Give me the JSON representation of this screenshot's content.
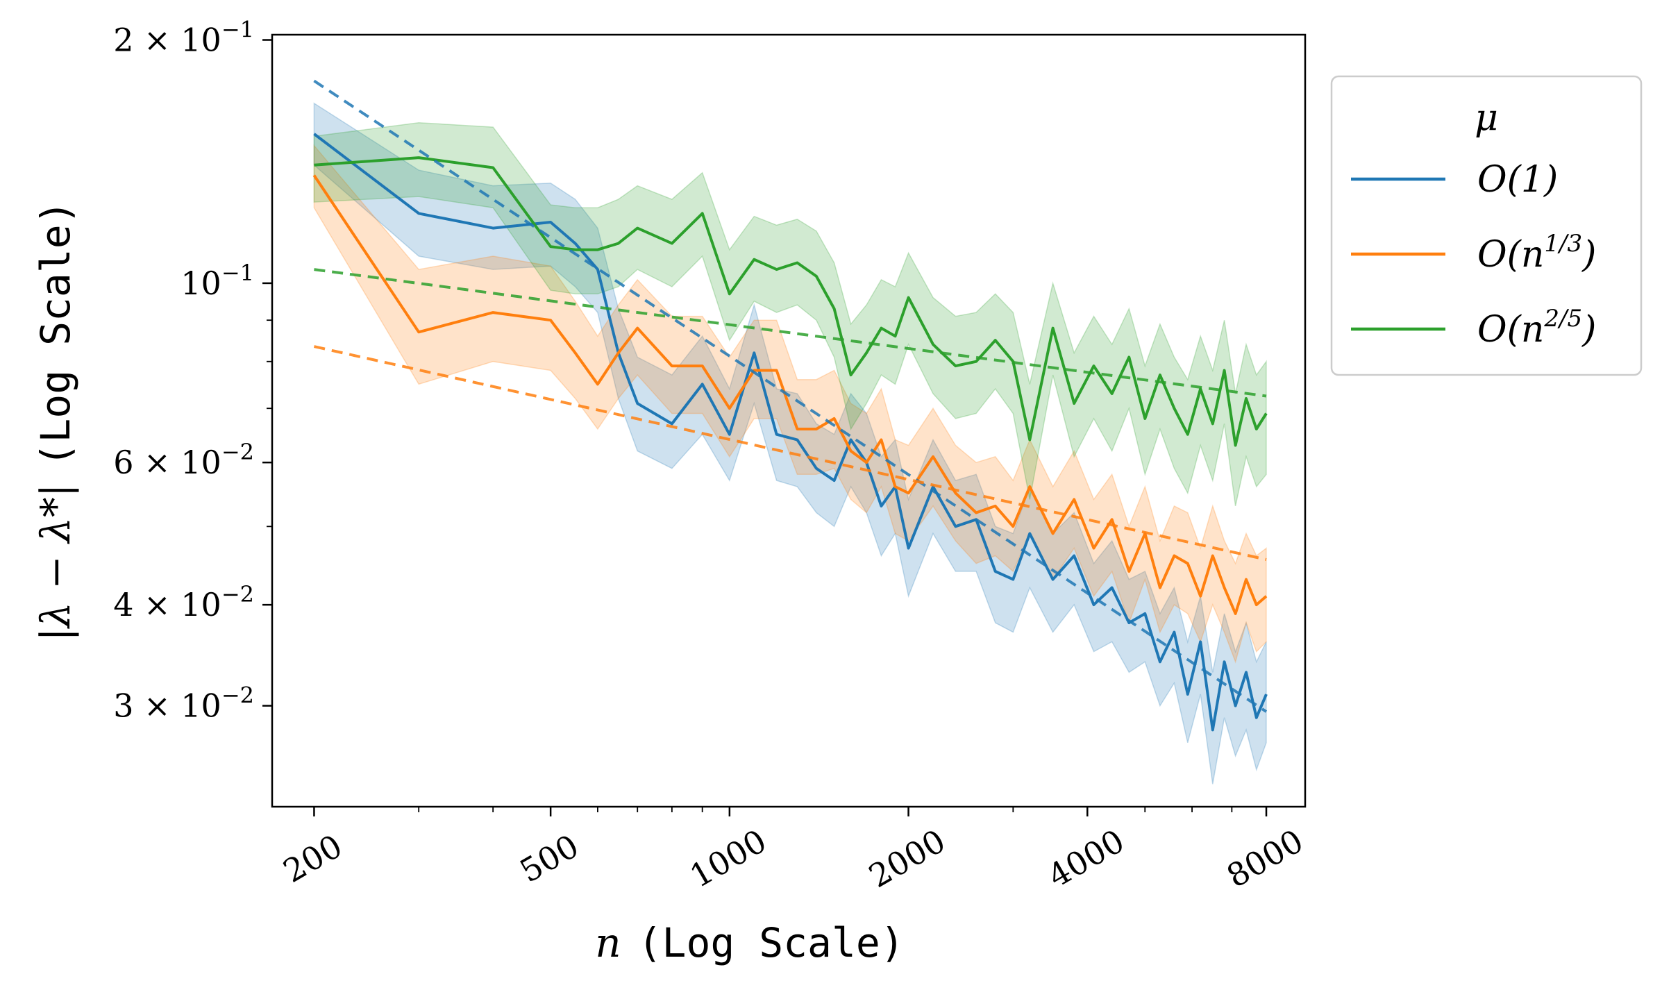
{
  "chart_data": {
    "type": "line",
    "xscale": "log",
    "yscale": "log",
    "xlim": [
      170,
      9300
    ],
    "ylim": [
      0.0225,
      0.203
    ],
    "xlabel": {
      "var": "n",
      "rest": "(Log Scale)"
    },
    "ylabel": {
      "math": "|λ − λ*|",
      "rest": "(Log Scale)"
    },
    "xticks": [
      {
        "value": 200,
        "label": "200"
      },
      {
        "value": 500,
        "label": "500"
      },
      {
        "value": 1000,
        "label": "1000"
      },
      {
        "value": 2000,
        "label": "2000"
      },
      {
        "value": 4000,
        "label": "4000"
      },
      {
        "value": 8000,
        "label": "8000"
      }
    ],
    "yticks": [
      {
        "value": 0.2,
        "mant": "2 × 10",
        "exp": "−1"
      },
      {
        "value": 0.1,
        "mant": "10",
        "exp": "−1"
      },
      {
        "value": 0.06,
        "mant": "6 × 10",
        "exp": "−2"
      },
      {
        "value": 0.04,
        "mant": "4 × 10",
        "exp": "−2"
      },
      {
        "value": 0.03,
        "mant": "3 × 10",
        "exp": "−2"
      }
    ],
    "yminor": [
      0.05,
      0.07,
      0.08,
      0.09
    ],
    "xminor": [
      300,
      400,
      600,
      700,
      800,
      900,
      3000,
      5000,
      6000,
      7000
    ],
    "legend": {
      "title": "μ",
      "position": "outside-right-top",
      "entries": [
        {
          "base": "O(1)",
          "sup": ""
        },
        {
          "base": "O(n",
          "sup": "1/3",
          "tail": ")"
        },
        {
          "base": "O(n",
          "sup": "2/5",
          "tail": ")"
        }
      ]
    },
    "series": [
      {
        "name": "O(1)",
        "color": "#1f77b4",
        "x": [
          200,
          300,
          400,
          500,
          550,
          600,
          650,
          700,
          800,
          900,
          1000,
          1100,
          1200,
          1300,
          1400,
          1500,
          1600,
          1700,
          1800,
          1900,
          2000,
          2200,
          2400,
          2600,
          2800,
          3000,
          3200,
          3500,
          3800,
          4100,
          4400,
          4700,
          5000,
          5300,
          5600,
          5900,
          6200,
          6500,
          6800,
          7100,
          7400,
          7700,
          8000
        ],
        "mean": [
          0.153,
          0.122,
          0.117,
          0.119,
          0.112,
          0.104,
          0.082,
          0.071,
          0.067,
          0.075,
          0.065,
          0.082,
          0.065,
          0.064,
          0.059,
          0.057,
          0.064,
          0.06,
          0.053,
          0.056,
          0.047,
          0.056,
          0.05,
          0.051,
          0.044,
          0.043,
          0.049,
          0.043,
          0.046,
          0.04,
          0.042,
          0.038,
          0.039,
          0.034,
          0.037,
          0.031,
          0.036,
          0.028,
          0.034,
          0.03,
          0.033,
          0.029,
          0.031
        ],
        "low": [
          0.14,
          0.108,
          0.104,
          0.105,
          0.099,
          0.092,
          0.072,
          0.062,
          0.059,
          0.065,
          0.057,
          0.071,
          0.057,
          0.056,
          0.052,
          0.05,
          0.056,
          0.052,
          0.046,
          0.049,
          0.041,
          0.049,
          0.044,
          0.044,
          0.038,
          0.037,
          0.042,
          0.037,
          0.04,
          0.035,
          0.036,
          0.033,
          0.034,
          0.03,
          0.032,
          0.027,
          0.031,
          0.024,
          0.029,
          0.026,
          0.028,
          0.025,
          0.027
        ],
        "high": [
          0.167,
          0.138,
          0.132,
          0.133,
          0.127,
          0.117,
          0.093,
          0.081,
          0.077,
          0.086,
          0.074,
          0.094,
          0.074,
          0.073,
          0.067,
          0.065,
          0.073,
          0.069,
          0.061,
          0.064,
          0.054,
          0.064,
          0.057,
          0.058,
          0.05,
          0.049,
          0.056,
          0.049,
          0.052,
          0.045,
          0.048,
          0.043,
          0.044,
          0.039,
          0.042,
          0.036,
          0.041,
          0.033,
          0.039,
          0.035,
          0.038,
          0.034,
          0.036
        ],
        "fit": {
          "x": [
            200,
            8000
          ],
          "y": [
            0.178,
            0.0295
          ]
        }
      },
      {
        "name": "O(n^{1/3})",
        "color": "#ff7f0e",
        "x": [
          200,
          300,
          400,
          500,
          550,
          600,
          650,
          700,
          800,
          900,
          1000,
          1100,
          1200,
          1300,
          1400,
          1500,
          1600,
          1700,
          1800,
          1900,
          2000,
          2200,
          2400,
          2600,
          2800,
          3000,
          3200,
          3500,
          3800,
          4100,
          4400,
          4700,
          5000,
          5300,
          5600,
          5900,
          6200,
          6500,
          6800,
          7100,
          7400,
          7700,
          8000
        ],
        "mean": [
          0.136,
          0.087,
          0.092,
          0.09,
          0.082,
          0.075,
          0.082,
          0.088,
          0.079,
          0.079,
          0.07,
          0.078,
          0.078,
          0.066,
          0.066,
          0.068,
          0.062,
          0.06,
          0.064,
          0.056,
          0.055,
          0.061,
          0.055,
          0.052,
          0.053,
          0.05,
          0.056,
          0.049,
          0.054,
          0.047,
          0.051,
          0.044,
          0.049,
          0.042,
          0.046,
          0.045,
          0.041,
          0.046,
          0.042,
          0.039,
          0.043,
          0.04,
          0.041
        ],
        "low": [
          0.124,
          0.075,
          0.08,
          0.078,
          0.072,
          0.066,
          0.072,
          0.077,
          0.069,
          0.069,
          0.061,
          0.068,
          0.068,
          0.058,
          0.058,
          0.059,
          0.054,
          0.052,
          0.056,
          0.049,
          0.048,
          0.053,
          0.048,
          0.045,
          0.046,
          0.044,
          0.049,
          0.043,
          0.047,
          0.041,
          0.044,
          0.038,
          0.043,
          0.037,
          0.04,
          0.039,
          0.036,
          0.04,
          0.037,
          0.034,
          0.038,
          0.035,
          0.036
        ],
        "high": [
          0.148,
          0.104,
          0.108,
          0.105,
          0.095,
          0.086,
          0.094,
          0.101,
          0.091,
          0.091,
          0.081,
          0.09,
          0.09,
          0.076,
          0.076,
          0.078,
          0.071,
          0.069,
          0.074,
          0.064,
          0.063,
          0.07,
          0.063,
          0.06,
          0.061,
          0.057,
          0.064,
          0.056,
          0.062,
          0.054,
          0.058,
          0.05,
          0.056,
          0.048,
          0.053,
          0.052,
          0.047,
          0.053,
          0.048,
          0.045,
          0.049,
          0.046,
          0.047
        ],
        "fit": {
          "x": [
            200,
            8000
          ],
          "y": [
            0.0835,
            0.0455
          ]
        }
      },
      {
        "name": "O(n^{2/5})",
        "color": "#2ca02c",
        "x": [
          200,
          300,
          400,
          500,
          550,
          600,
          650,
          700,
          800,
          900,
          1000,
          1100,
          1200,
          1300,
          1400,
          1500,
          1600,
          1700,
          1800,
          1900,
          2000,
          2200,
          2400,
          2600,
          2800,
          3000,
          3200,
          3500,
          3800,
          4100,
          4400,
          4700,
          5000,
          5300,
          5600,
          5900,
          6200,
          6500,
          6800,
          7100,
          7400,
          7700,
          8000
        ],
        "mean": [
          0.14,
          0.143,
          0.139,
          0.111,
          0.11,
          0.11,
          0.112,
          0.117,
          0.112,
          0.122,
          0.097,
          0.107,
          0.104,
          0.106,
          0.102,
          0.093,
          0.077,
          0.082,
          0.088,
          0.086,
          0.096,
          0.084,
          0.079,
          0.08,
          0.085,
          0.08,
          0.064,
          0.088,
          0.071,
          0.079,
          0.073,
          0.081,
          0.068,
          0.077,
          0.07,
          0.065,
          0.074,
          0.067,
          0.078,
          0.063,
          0.072,
          0.066,
          0.069
        ],
        "low": [
          0.126,
          0.128,
          0.124,
          0.098,
          0.097,
          0.097,
          0.099,
          0.104,
          0.099,
          0.108,
          0.085,
          0.095,
          0.092,
          0.094,
          0.09,
          0.081,
          0.066,
          0.071,
          0.077,
          0.075,
          0.084,
          0.073,
          0.068,
          0.069,
          0.074,
          0.069,
          0.054,
          0.077,
          0.061,
          0.068,
          0.062,
          0.07,
          0.058,
          0.066,
          0.059,
          0.055,
          0.063,
          0.057,
          0.067,
          0.053,
          0.061,
          0.056,
          0.058
        ],
        "high": [
          0.152,
          0.158,
          0.156,
          0.125,
          0.124,
          0.124,
          0.127,
          0.132,
          0.127,
          0.137,
          0.11,
          0.121,
          0.118,
          0.12,
          0.116,
          0.106,
          0.089,
          0.094,
          0.101,
          0.099,
          0.109,
          0.096,
          0.091,
          0.092,
          0.097,
          0.092,
          0.075,
          0.1,
          0.082,
          0.091,
          0.084,
          0.093,
          0.079,
          0.089,
          0.081,
          0.076,
          0.086,
          0.078,
          0.09,
          0.073,
          0.084,
          0.077,
          0.08
        ],
        "fit": {
          "x": [
            200,
            8000
          ],
          "y": [
            0.104,
            0.0725
          ]
        }
      }
    ]
  }
}
